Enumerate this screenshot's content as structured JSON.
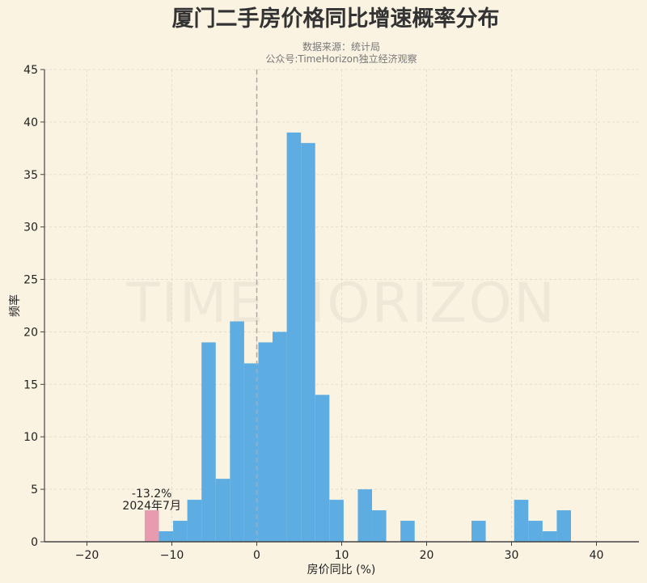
{
  "chart_data": {
    "type": "bar",
    "title": "厦门二手房价格同比增速概率分布",
    "subtitle_lines": [
      "数据来源：统计局",
      "公众号:TimeHorizon独立经济观察"
    ],
    "watermark": "TIME HORIZON",
    "xlabel": "房价同比 (%)",
    "ylabel": "频率",
    "xlim": [
      -25,
      45
    ],
    "ylim": [
      0,
      45
    ],
    "xticks": [
      -20,
      -10,
      0,
      10,
      20,
      30,
      40
    ],
    "yticks": [
      0,
      5,
      10,
      15,
      20,
      25,
      30,
      35,
      40,
      45
    ],
    "grid": true,
    "bin_start": -13.2,
    "bin_end": 37.0,
    "counts": [
      3,
      1,
      2,
      4,
      19,
      6,
      21,
      17,
      19,
      20,
      39,
      38,
      14,
      4,
      0,
      5,
      3,
      0,
      2,
      0,
      0,
      0,
      0,
      2,
      0,
      0,
      4,
      2,
      1,
      3
    ],
    "highlight_bin": 0,
    "reference_line_x": 0,
    "annotation": {
      "value": "-13.2%",
      "date": "2024年7月"
    },
    "colors": {
      "bar": "#5dade2",
      "highlight": "#e89aae",
      "background": "#faf3e2"
    }
  }
}
